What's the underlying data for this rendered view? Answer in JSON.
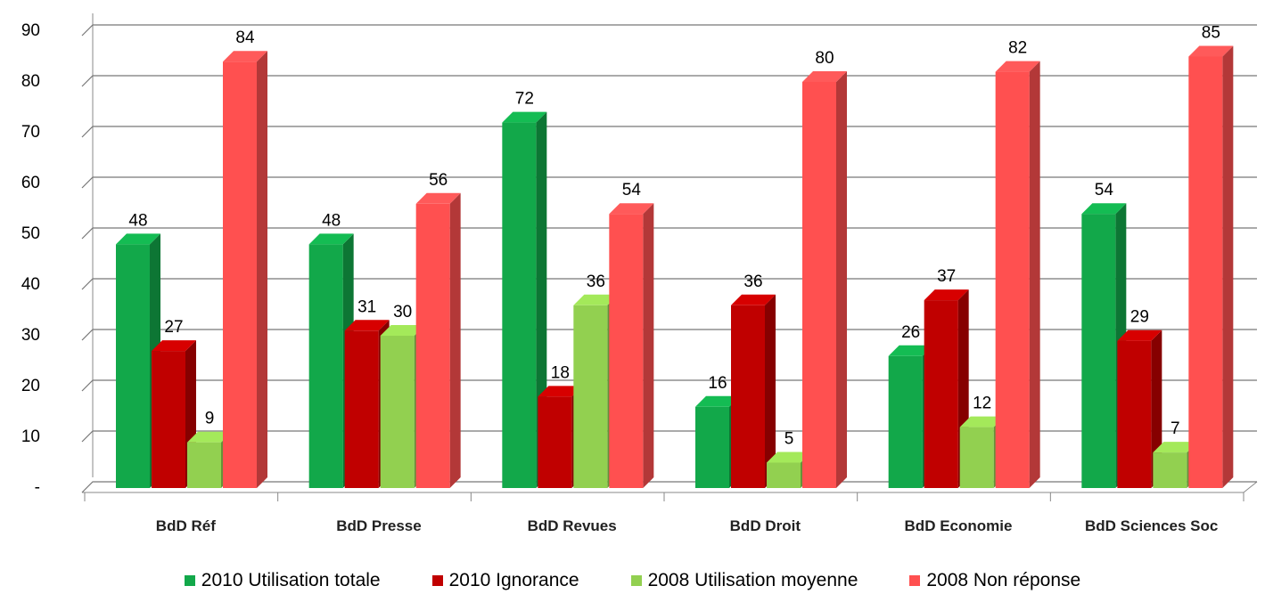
{
  "chart_data": {
    "type": "bar3d",
    "categories": [
      "BdD Réf",
      "BdD Presse",
      "BdD Revues",
      "BdD Droit",
      "BdD Economie",
      "BdD Sciences Soc"
    ],
    "series": [
      {
        "name": "2010 Utilisation totale",
        "color": "#12a84a",
        "values": [
          48,
          48,
          72,
          16,
          26,
          54
        ]
      },
      {
        "name": "2010 Ignorance",
        "color": "#c00000",
        "values": [
          27,
          31,
          18,
          36,
          37,
          29
        ]
      },
      {
        "name": "2008 Utilisation moyenne",
        "color": "#92d050",
        "values": [
          9,
          30,
          36,
          5,
          12,
          7
        ]
      },
      {
        "name": "2008 Non réponse",
        "color": "#ff5050",
        "values": [
          84,
          56,
          54,
          80,
          82,
          85
        ]
      }
    ],
    "ylim": [
      0,
      90
    ],
    "yticks": [
      {
        "value": 0,
        "label": "-"
      },
      10,
      20,
      30,
      40,
      50,
      60,
      70,
      80,
      90
    ],
    "grid": true,
    "legend": "bottom"
  }
}
